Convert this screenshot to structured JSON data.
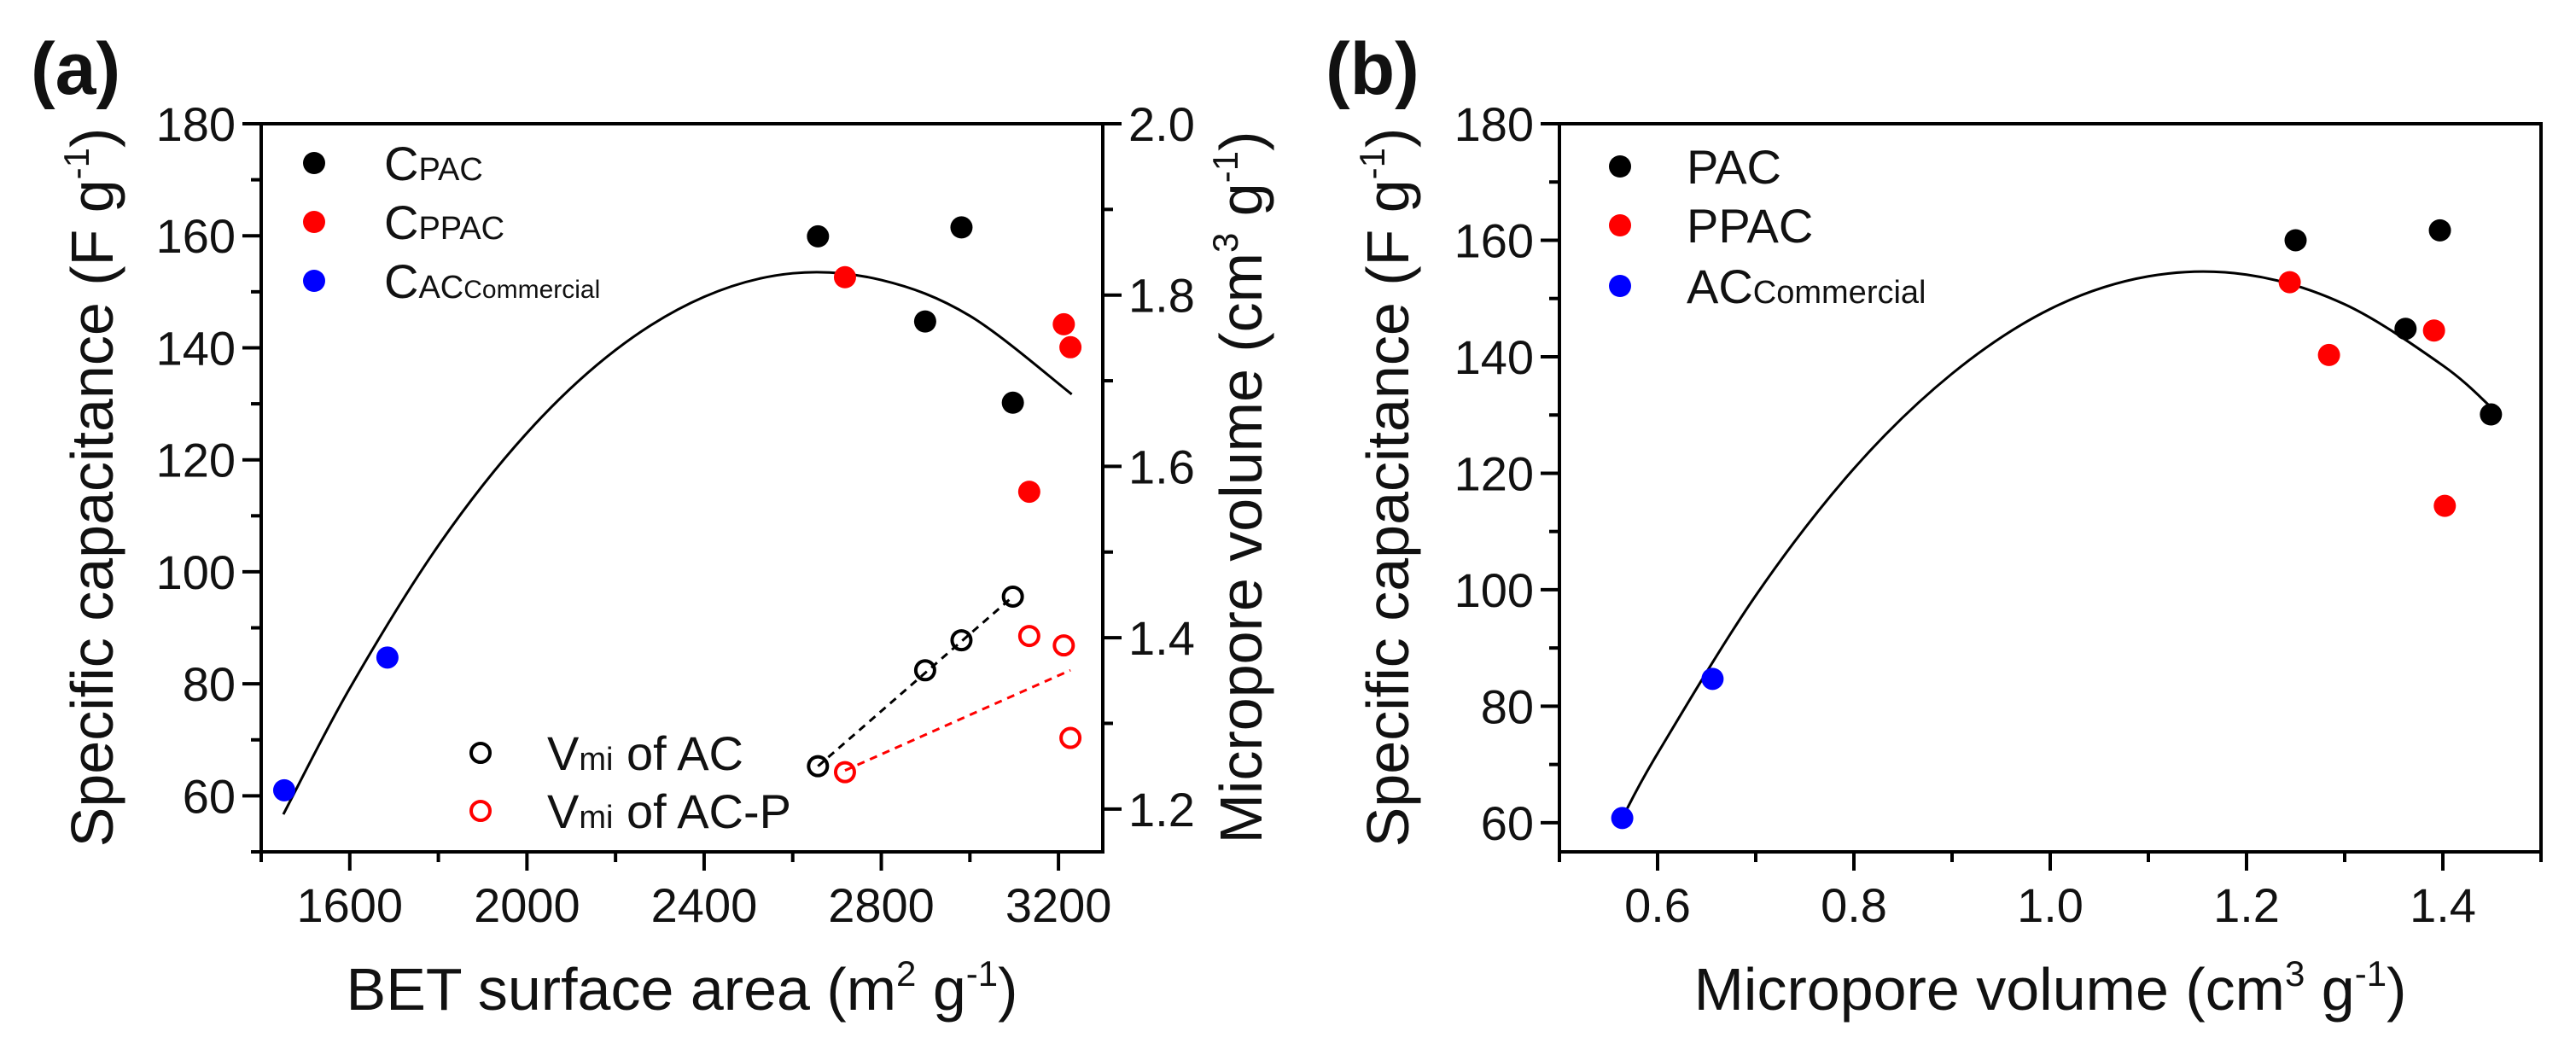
{
  "chart_data": [
    {
      "panel_label": "(a)",
      "type": "scatter",
      "xlabel": {
        "pre": "BET surface area (m",
        "sup1": "2",
        "mid": " g",
        "sup2": "-1",
        "post": ")"
      },
      "ylabel": {
        "pre": "Specific capacitance (F g",
        "sup": "-1",
        "post": ")"
      },
      "y2label": {
        "pre": "Micropore volume (cm",
        "sup1": "3",
        "mid": " g",
        "sup2": "-1",
        "post": ")"
      },
      "xlim": [
        1400,
        3300
      ],
      "ylim": [
        50,
        180
      ],
      "y2lim": [
        1.15,
        2.0
      ],
      "xticks": [
        "1600",
        "2000",
        "2400",
        "2800",
        "3200"
      ],
      "yticks": [
        "60",
        "80",
        "100",
        "120",
        "140",
        "160",
        "180"
      ],
      "y2ticks": [
        "1.2",
        "1.4",
        "1.6",
        "1.8",
        "2.0"
      ],
      "grid": false,
      "legend_placement": "top-left",
      "legend2_placement": "bottom-center",
      "series": [
        {
          "name": "C",
          "name_sub": "PAC",
          "axis": "left",
          "marker": "filled",
          "color": "#000000",
          "x": [
            2657,
            2981,
            2899,
            3097
          ],
          "y": [
            159.9,
            161.5,
            144.7,
            130.2
          ]
        },
        {
          "name": "C",
          "name_sub": "PPAC",
          "axis": "left",
          "marker": "filled",
          "color": "#ff0000",
          "x": [
            2718,
            3212,
            3227,
            3134
          ],
          "y": [
            152.6,
            144.2,
            140.1,
            114.3
          ]
        },
        {
          "name": "C",
          "name_sub": "AC",
          "name_sub2": "Commercial",
          "axis": "left",
          "marker": "filled",
          "color": "#0000ff",
          "x": [
            1452,
            1685
          ],
          "y": [
            61.0,
            84.7
          ]
        },
        {
          "name": "V",
          "name_sub": "mi",
          "name_post": " of AC",
          "axis": "right",
          "marker": "open",
          "color": "#000000",
          "x": [
            2657,
            2899,
            2981,
            3097
          ],
          "y": [
            1.25,
            1.362,
            1.397,
            1.448
          ]
        },
        {
          "name": "V",
          "name_sub": "mi",
          "name_post": " of AC-P",
          "axis": "right",
          "marker": "open",
          "color": "#ff0000",
          "x": [
            2718,
            3134,
            3212,
            3227
          ],
          "y": [
            1.243,
            1.402,
            1.391,
            1.283
          ]
        }
      ],
      "fit_lines": [
        {
          "axis": "left",
          "style": "solid",
          "color": "#000000",
          "x": [
            1450,
            1600,
            1800,
            2000,
            2200,
            2400,
            2600,
            2800,
            3000,
            3230
          ],
          "y": [
            56.7,
            79.2,
            104.7,
            124.8,
            139.6,
            149.1,
            153.3,
            152.1,
            145.7,
            131.7
          ]
        },
        {
          "axis": "right",
          "style": "dashed",
          "color": "#000000",
          "x": [
            2657,
            3097
          ],
          "y": [
            1.25,
            1.448
          ]
        },
        {
          "axis": "right",
          "style": "dashed",
          "color": "#ff0000",
          "x": [
            2718,
            3227
          ],
          "y": [
            1.245,
            1.362
          ]
        }
      ]
    },
    {
      "panel_label": "(b)",
      "type": "scatter",
      "xlabel": {
        "pre": "Micropore volume (cm",
        "sup1": "3",
        "mid": " g",
        "sup2": "-1",
        "post": ")"
      },
      "ylabel": {
        "pre": "Specific capacitance (F g",
        "sup": "-1",
        "post": ")"
      },
      "xlim": [
        0.5,
        1.5
      ],
      "ylim": [
        55,
        180
      ],
      "xticks": [
        "0.6",
        "0.8",
        "1.0",
        "1.2",
        "1.4"
      ],
      "yticks": [
        "60",
        "80",
        "100",
        "120",
        "140",
        "160",
        "180"
      ],
      "grid": false,
      "legend_placement": "top-left",
      "series": [
        {
          "name": "PAC",
          "name_sub": "",
          "axis": "left",
          "marker": "filled",
          "color": "#000000",
          "x": [
            1.25,
            1.397,
            1.362,
            1.449
          ],
          "y": [
            160.0,
            161.7,
            144.8,
            130.1
          ]
        },
        {
          "name": "PPAC",
          "name_sub": "",
          "axis": "left",
          "marker": "filled",
          "color": "#ff0000",
          "x": [
            1.244,
            1.284,
            1.391,
            1.402
          ],
          "y": [
            152.8,
            140.3,
            144.5,
            114.4
          ]
        },
        {
          "name": "AC",
          "name_sub": "Commercial",
          "axis": "left",
          "marker": "filled",
          "color": "#0000ff",
          "x": [
            0.564,
            0.656
          ],
          "y": [
            60.8,
            84.7
          ]
        }
      ],
      "fit_lines": [
        {
          "axis": "left",
          "style": "solid",
          "color": "#000000",
          "x": [
            0.564,
            0.6,
            0.7,
            0.8,
            0.9,
            1.0,
            1.1,
            1.2,
            1.3,
            1.4,
            1.45
          ],
          "y": [
            60.8,
            71.9,
            99.0,
            120.8,
            137.1,
            148.2,
            153.8,
            154.1,
            149.0,
            138.5,
            131.2
          ]
        }
      ]
    }
  ]
}
